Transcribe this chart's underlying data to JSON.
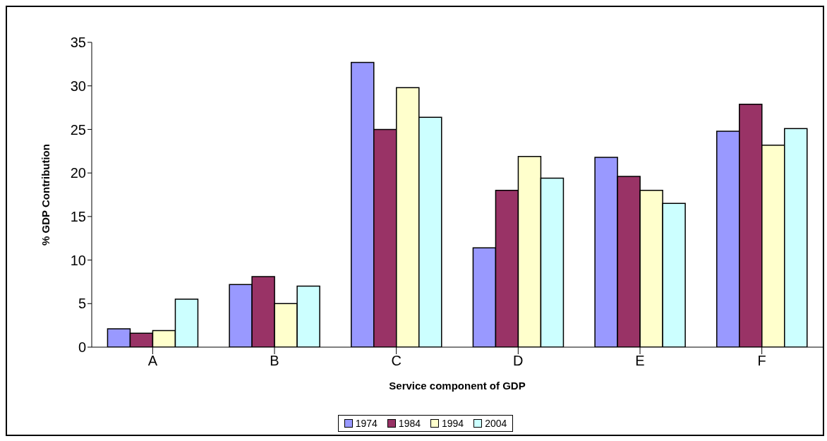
{
  "chart_data": {
    "type": "bar",
    "xlabel": "Service component of GDP",
    "ylabel": "% GDP Contribution",
    "categories": [
      "A",
      "B",
      "C",
      "D",
      "E",
      "F"
    ],
    "series": [
      {
        "name": "1974",
        "color": "#9999ff",
        "values": [
          2.1,
          7.2,
          32.7,
          11.4,
          21.8,
          24.8
        ]
      },
      {
        "name": "1984",
        "color": "#993366",
        "values": [
          1.6,
          8.1,
          25.0,
          18.0,
          19.6,
          27.9
        ]
      },
      {
        "name": "1994",
        "color": "#ffffcc",
        "values": [
          1.9,
          5.0,
          29.8,
          21.9,
          18.0,
          23.2
        ]
      },
      {
        "name": "2004",
        "color": "#ccffff",
        "values": [
          5.5,
          7.0,
          26.4,
          19.4,
          16.5,
          25.1
        ]
      }
    ],
    "ylim": [
      0,
      35
    ],
    "yticks": [
      0,
      5,
      10,
      15,
      20,
      25,
      30,
      35
    ],
    "grid": false,
    "legend": "bottom"
  }
}
